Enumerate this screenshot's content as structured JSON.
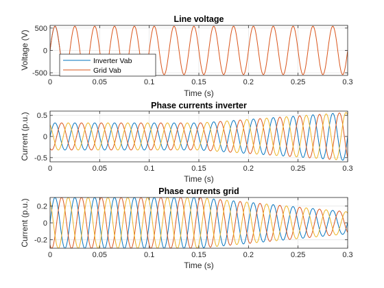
{
  "chart_data": [
    {
      "type": "line",
      "title": "Line voltage",
      "xlabel": "Time (s)",
      "ylabel": "Voltage (V)",
      "xlim": [
        0,
        0.3
      ],
      "ylim": [
        -560,
        560
      ],
      "xticks": [
        0,
        0.05,
        0.1,
        0.15,
        0.2,
        0.25,
        0.3
      ],
      "xtick_labels": [
        "0",
        "0.05",
        "0.1",
        "0.15",
        "0.2",
        "0.25",
        "0.3"
      ],
      "yticks": [
        -500,
        0,
        500
      ],
      "ytick_labels": [
        "-500",
        "0",
        "500"
      ],
      "grid": true,
      "legend": "bottom-left",
      "series": [
        {
          "name": "Inverter Vab",
          "color": "#0072BD",
          "amplitude": 540,
          "freq_hz": 50,
          "phase_deg": 0,
          "dc_offset": 0,
          "visible_until": 0.015
        },
        {
          "name": "Grid Vab",
          "color": "#D95319",
          "amplitude": 540,
          "freq_hz": 50,
          "phase_deg": 0,
          "dc_offset": 0
        }
      ]
    },
    {
      "type": "line",
      "title": "Phase currents inverter",
      "xlabel": "Time (s)",
      "ylabel": "Current (p.u.)",
      "xlim": [
        0,
        0.3
      ],
      "ylim": [
        -0.6,
        0.6
      ],
      "xticks": [
        0,
        0.05,
        0.1,
        0.15,
        0.2,
        0.25,
        0.3
      ],
      "xtick_labels": [
        "0",
        "0.05",
        "0.1",
        "0.15",
        "0.2",
        "0.25",
        "0.3"
      ],
      "yticks": [
        -0.5,
        0,
        0.5
      ],
      "ytick_labels": [
        "-0.5",
        "0",
        "0.5"
      ],
      "grid": true,
      "series": [
        {
          "color": "#0072BD",
          "amplitude_start": 0.32,
          "amplitude_end": 0.57,
          "ramp_start": 0.15,
          "freq_hz": 50,
          "phase_deg": 0,
          "dc_offset": 0
        },
        {
          "color": "#D95319",
          "amplitude_start": 0.32,
          "amplitude_end": 0.57,
          "ramp_start": 0.15,
          "freq_hz": 50,
          "phase_deg": -120,
          "dc_offset": 0
        },
        {
          "color": "#EDB120",
          "amplitude_start": 0.32,
          "amplitude_end": 0.57,
          "ramp_start": 0.15,
          "freq_hz": 50,
          "phase_deg": 120,
          "dc_offset": 0
        }
      ]
    },
    {
      "type": "line",
      "title": "Phase currents grid",
      "xlabel": "Time (s)",
      "ylabel": "Current (p.u.)",
      "xlim": [
        0,
        0.3
      ],
      "ylim": [
        -0.3,
        0.3
      ],
      "xticks": [
        0,
        0.05,
        0.1,
        0.15,
        0.2,
        0.25,
        0.3
      ],
      "xtick_labels": [
        "0",
        "0.05",
        "0.1",
        "0.15",
        "0.2",
        "0.25",
        "0.3"
      ],
      "yticks": [
        -0.2,
        0,
        0.2
      ],
      "ytick_labels": [
        "-0.2",
        "0",
        "0.2"
      ],
      "grid": true,
      "series": [
        {
          "color": "#0072BD",
          "amplitude_start": 0.3,
          "amplitude_end": 0.13,
          "ramp_start": 0.15,
          "freq_hz": 50,
          "phase_deg": 0,
          "dc_offset": 0
        },
        {
          "color": "#D95319",
          "amplitude_start": 0.3,
          "amplitude_end": 0.13,
          "ramp_start": 0.15,
          "freq_hz": 50,
          "phase_deg": -120,
          "dc_offset": 0
        },
        {
          "color": "#EDB120",
          "amplitude_start": 0.3,
          "amplitude_end": 0.13,
          "ramp_start": 0.15,
          "freq_hz": 50,
          "phase_deg": 120,
          "dc_offset": 0
        }
      ]
    }
  ]
}
